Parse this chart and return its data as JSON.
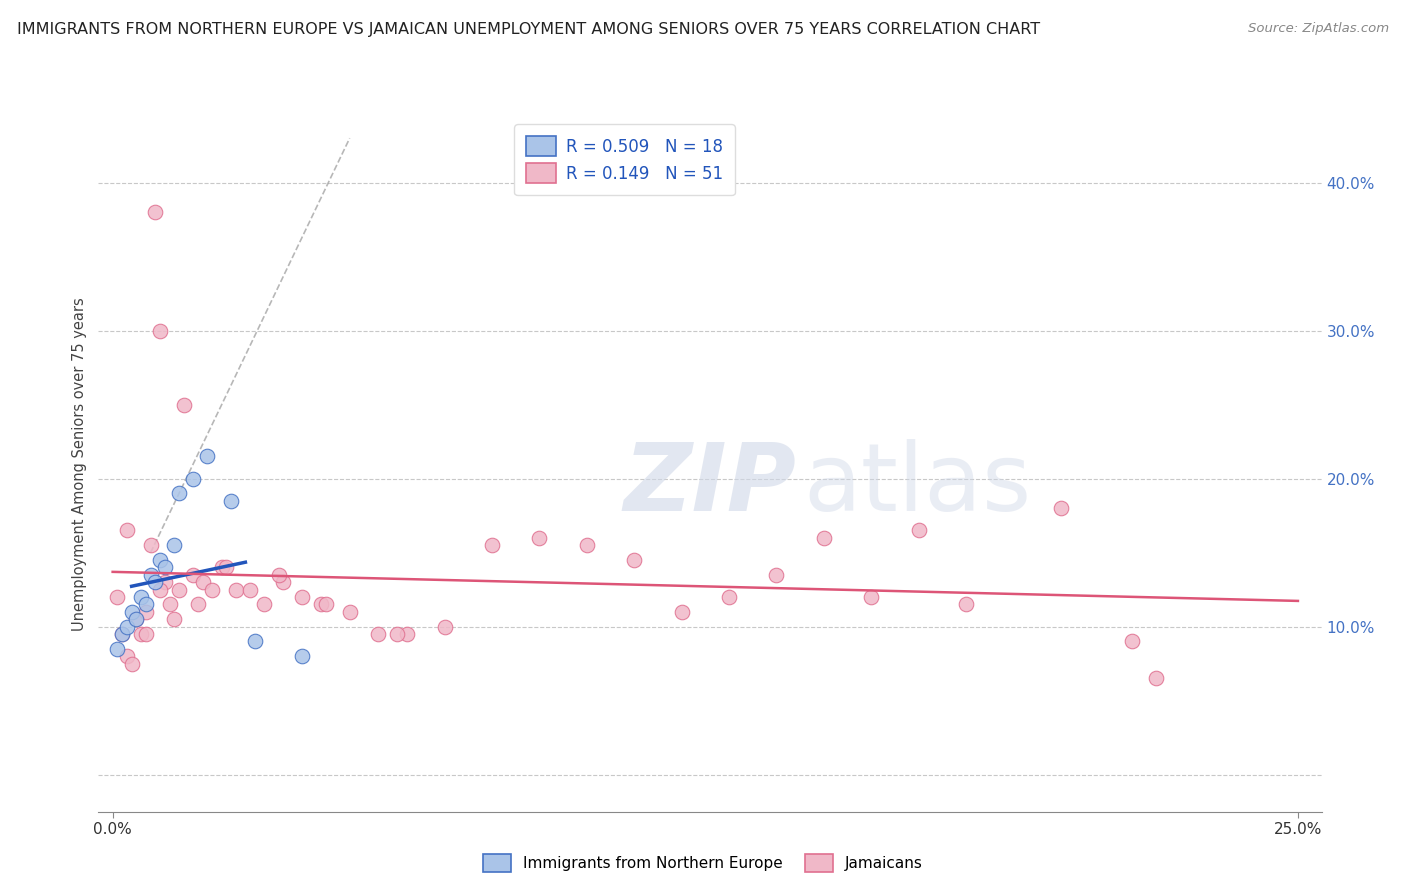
{
  "title": "IMMIGRANTS FROM NORTHERN EUROPE VS JAMAICAN UNEMPLOYMENT AMONG SENIORS OVER 75 YEARS CORRELATION CHART",
  "source": "Source: ZipAtlas.com",
  "ylabel": "Unemployment Among Seniors over 75 years",
  "xlim": [
    -0.003,
    0.255
  ],
  "ylim": [
    -0.025,
    0.445
  ],
  "blue_R": "0.509",
  "blue_N": "18",
  "pink_R": "0.149",
  "pink_N": "51",
  "blue_scatter_x": [
    0.001,
    0.002,
    0.003,
    0.004,
    0.005,
    0.006,
    0.007,
    0.008,
    0.009,
    0.01,
    0.011,
    0.013,
    0.014,
    0.017,
    0.02,
    0.025,
    0.03,
    0.04
  ],
  "blue_scatter_y": [
    0.085,
    0.095,
    0.1,
    0.11,
    0.105,
    0.12,
    0.115,
    0.135,
    0.13,
    0.145,
    0.14,
    0.155,
    0.19,
    0.2,
    0.215,
    0.185,
    0.09,
    0.08
  ],
  "pink_scatter_x": [
    0.001,
    0.002,
    0.003,
    0.004,
    0.005,
    0.006,
    0.007,
    0.008,
    0.009,
    0.01,
    0.011,
    0.012,
    0.013,
    0.015,
    0.017,
    0.019,
    0.021,
    0.023,
    0.026,
    0.029,
    0.032,
    0.036,
    0.04,
    0.044,
    0.05,
    0.056,
    0.062,
    0.07,
    0.08,
    0.09,
    0.1,
    0.11,
    0.12,
    0.13,
    0.14,
    0.15,
    0.16,
    0.17,
    0.18,
    0.2,
    0.215,
    0.22,
    0.003,
    0.007,
    0.01,
    0.014,
    0.018,
    0.024,
    0.035,
    0.045,
    0.06
  ],
  "pink_scatter_y": [
    0.12,
    0.095,
    0.08,
    0.075,
    0.105,
    0.095,
    0.11,
    0.155,
    0.38,
    0.3,
    0.13,
    0.115,
    0.105,
    0.25,
    0.135,
    0.13,
    0.125,
    0.14,
    0.125,
    0.125,
    0.115,
    0.13,
    0.12,
    0.115,
    0.11,
    0.095,
    0.095,
    0.1,
    0.155,
    0.16,
    0.155,
    0.145,
    0.11,
    0.12,
    0.135,
    0.16,
    0.12,
    0.165,
    0.115,
    0.18,
    0.09,
    0.065,
    0.165,
    0.095,
    0.125,
    0.125,
    0.115,
    0.14,
    0.135,
    0.115,
    0.095
  ],
  "blue_color": "#aac4e8",
  "pink_color": "#f0b8c8",
  "blue_edge_color": "#4472c4",
  "pink_edge_color": "#e07090",
  "blue_line_color": "#2255bb",
  "pink_line_color": "#dd5577",
  "bg_color": "#ffffff",
  "grid_color": "#c8c8c8",
  "title_color": "#222222",
  "axis_label_color": "#444444",
  "right_tick_color": "#4472c4",
  "yticks": [
    0.0,
    0.1,
    0.2,
    0.3,
    0.4
  ],
  "xtick_labels_show": [
    "0.0%",
    "25.0%"
  ],
  "xtick_positions_show": [
    0.0,
    0.25
  ]
}
